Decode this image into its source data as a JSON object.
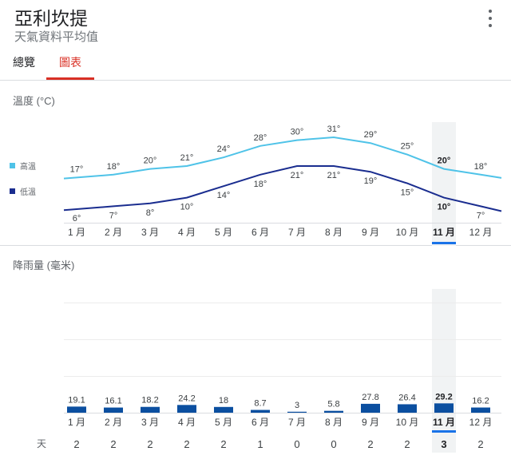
{
  "header": {
    "title": "亞利坎提",
    "subtitle": "天氣資料平均值",
    "more_icon": "more-vert-icon"
  },
  "tabs": [
    {
      "label": "總覽"
    },
    {
      "label": "圖表"
    }
  ],
  "temperature": {
    "title": "溫度 (°C)",
    "legend": {
      "high": "高溫",
      "low": "低溫"
    },
    "colors": {
      "high": "#4fc3e8",
      "low": "#1a2d8f"
    }
  },
  "precipitation": {
    "title": "降雨量 (毫米)",
    "bar_color": "#0b4fa0"
  },
  "days_label": "天",
  "selected_month_index": 10,
  "chart_data": [
    {
      "type": "line",
      "title": "溫度 (°C)",
      "categories": [
        "1 月",
        "2 月",
        "3 月",
        "4 月",
        "5 月",
        "6 月",
        "7 月",
        "8 月",
        "9 月",
        "10 月",
        "11 月",
        "12 月"
      ],
      "series": [
        {
          "name": "高溫",
          "values": [
            17,
            18,
            20,
            21,
            24,
            28,
            30,
            31,
            29,
            25,
            20,
            18
          ],
          "labels": [
            "17°",
            "18°",
            "20°",
            "21°",
            "24°",
            "28°",
            "30°",
            "31°",
            "29°",
            "25°",
            "20°",
            "18°"
          ]
        },
        {
          "name": "低溫",
          "values": [
            6,
            7,
            8,
            10,
            14,
            18,
            21,
            21,
            19,
            15,
            10,
            7
          ],
          "labels": [
            "6°",
            "7°",
            "8°",
            "10°",
            "14°",
            "18°",
            "21°",
            "21°",
            "19°",
            "15°",
            "10°",
            "7°"
          ]
        }
      ],
      "ylim": [
        5,
        32
      ]
    },
    {
      "type": "bar",
      "title": "降雨量 (毫米)",
      "categories": [
        "1 月",
        "2 月",
        "3 月",
        "4 月",
        "5 月",
        "6 月",
        "7 月",
        "8 月",
        "9 月",
        "10 月",
        "11 月",
        "12 月"
      ],
      "values": [
        19.1,
        16.1,
        18.2,
        24.2,
        18,
        8.7,
        3,
        5.8,
        27.8,
        26.4,
        29.2,
        16.2
      ],
      "labels": [
        "19.1",
        "16.1",
        "18.2",
        "24.2",
        "18",
        "8.7",
        "3",
        "5.8",
        "27.8",
        "26.4",
        "29.2",
        "16.2"
      ],
      "days": [
        "2",
        "2",
        "2",
        "2",
        "2",
        "1",
        "0",
        "0",
        "2",
        "2",
        "3",
        "2"
      ],
      "ylim": [
        0,
        150
      ]
    }
  ]
}
